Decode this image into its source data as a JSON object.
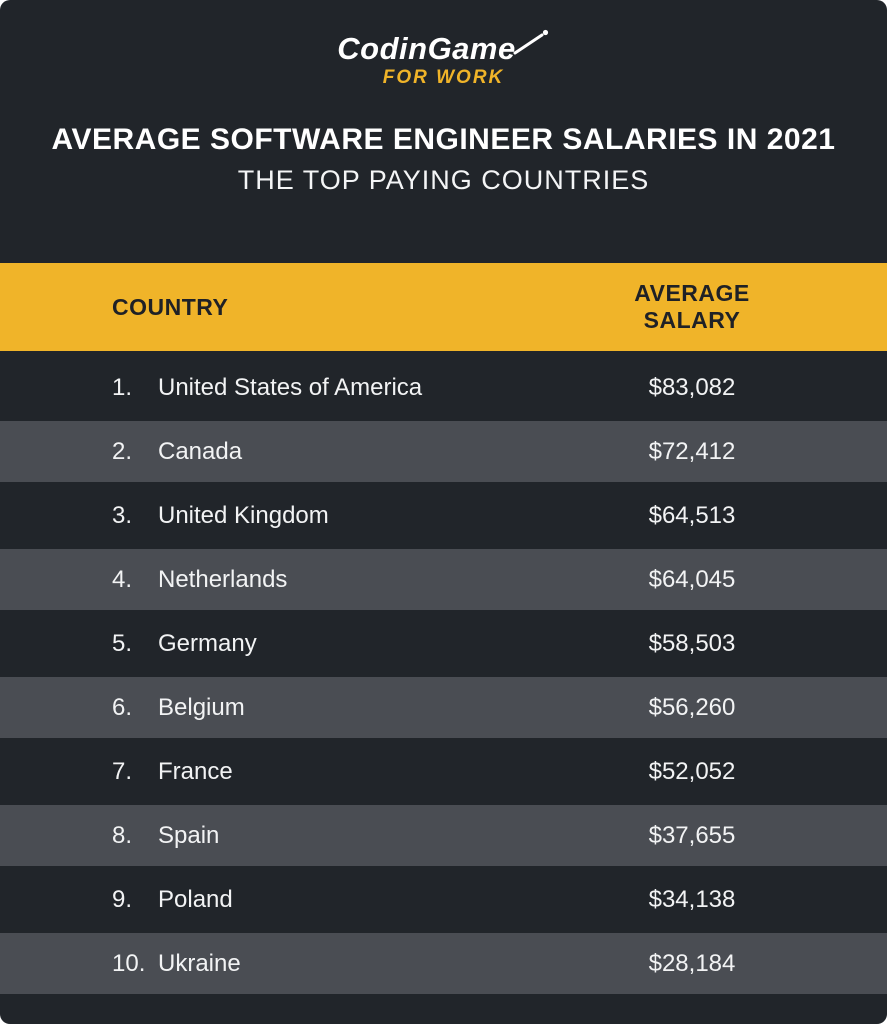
{
  "logo": {
    "brand": "CodinGame",
    "tagline": "FOR WORK"
  },
  "header": {
    "title": "AVERAGE SOFTWARE ENGINEER SALARIES IN 2021",
    "subtitle": "THE TOP PAYING COUNTRIES"
  },
  "table": {
    "columns": [
      "COUNTRY",
      "AVERAGE SALARY"
    ],
    "rows": [
      {
        "rank": "1.",
        "country": "United States of America",
        "salary": "$83,082"
      },
      {
        "rank": "2.",
        "country": "Canada",
        "salary": "$72,412"
      },
      {
        "rank": "3.",
        "country": "United Kingdom",
        "salary": "$64,513"
      },
      {
        "rank": "4.",
        "country": "Netherlands",
        "salary": "$64,045"
      },
      {
        "rank": "5.",
        "country": "Germany",
        "salary": "$58,503"
      },
      {
        "rank": "6.",
        "country": "Belgium",
        "salary": "$56,260"
      },
      {
        "rank": "7.",
        "country": "France",
        "salary": "$52,052"
      },
      {
        "rank": "8.",
        "country": "Spain",
        "salary": "$37,655"
      },
      {
        "rank": "9.",
        "country": "Poland",
        "salary": "$34,138"
      },
      {
        "rank": "10.",
        "country": "Ukraine",
        "salary": "$28,184"
      }
    ]
  },
  "colors": {
    "card_background": "#21252A",
    "alt_row_background": "#4A4D53",
    "accent_yellow": "#F0B429",
    "header_bar_text": "#1F2126",
    "row_text": "#F2F3F4",
    "title_text": "#FFFFFF"
  },
  "chart_data": {
    "type": "table",
    "title": "AVERAGE SOFTWARE ENGINEER SALARIES IN 2021",
    "subtitle": "THE TOP PAYING COUNTRIES",
    "columns": [
      "COUNTRY",
      "AVERAGE SALARY"
    ],
    "categories": [
      "United States of America",
      "Canada",
      "United Kingdom",
      "Netherlands",
      "Germany",
      "Belgium",
      "France",
      "Spain",
      "Poland",
      "Ukraine"
    ],
    "values": [
      83082,
      72412,
      64513,
      64045,
      58503,
      56260,
      52052,
      37655,
      34138,
      28184
    ],
    "value_unit": "USD"
  }
}
